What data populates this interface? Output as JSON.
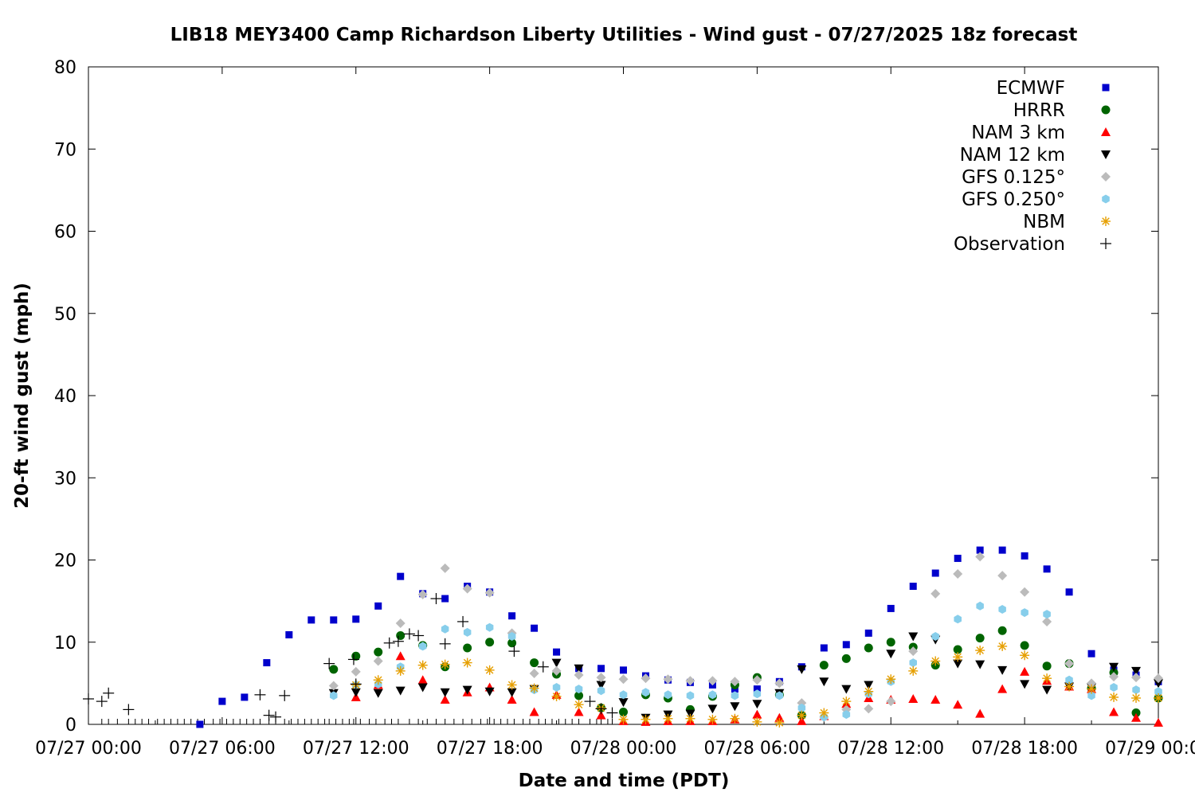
{
  "chart_data": {
    "type": "scatter",
    "title": "LIB18 MEY3400 Camp Richardson Liberty Utilities - Wind gust - 07/27/2025 18z forecast",
    "xlabel": "Date and time (PDT)",
    "ylabel": "20-ft wind gust (mph)",
    "x_unit": "hours since 07/27 00:00 PDT",
    "xlim": [
      0,
      48
    ],
    "ylim": [
      0,
      80
    ],
    "yticks": [
      0,
      10,
      20,
      30,
      40,
      50,
      60,
      70,
      80
    ],
    "xticks": [
      {
        "x": 0,
        "label": "07/27 00:00"
      },
      {
        "x": 6,
        "label": "07/27 06:00"
      },
      {
        "x": 12,
        "label": "07/27 12:00"
      },
      {
        "x": 18,
        "label": "07/27 18:00"
      },
      {
        "x": 24,
        "label": "07/28 00:00"
      },
      {
        "x": 30,
        "label": "07/28 06:00"
      },
      {
        "x": 36,
        "label": "07/28 12:00"
      },
      {
        "x": 42,
        "label": "07/28 18:00"
      },
      {
        "x": 48,
        "label": "07/29 00:00"
      }
    ],
    "legend_position": "top-right",
    "grid": false,
    "series": [
      {
        "name": "ECMWF",
        "marker": "square",
        "color": "#0000cc",
        "points": [
          [
            5,
            0
          ],
          [
            6,
            2.8
          ],
          [
            7,
            3.3
          ],
          [
            8,
            7.5
          ],
          [
            9,
            10.9
          ],
          [
            10,
            12.7
          ],
          [
            11,
            12.7
          ],
          [
            12,
            12.8
          ],
          [
            13,
            14.4
          ],
          [
            14,
            18
          ],
          [
            15,
            15.9
          ],
          [
            16,
            15.3
          ],
          [
            17,
            16.8
          ],
          [
            18,
            16.1
          ],
          [
            19,
            13.2
          ],
          [
            20,
            11.7
          ],
          [
            21,
            8.8
          ],
          [
            22,
            6.8
          ],
          [
            23,
            6.8
          ],
          [
            24,
            6.6
          ],
          [
            25,
            5.9
          ],
          [
            26,
            5.4
          ],
          [
            27,
            5.1
          ],
          [
            28,
            4.8
          ],
          [
            29,
            4.3
          ],
          [
            30,
            4.3
          ],
          [
            31,
            5.2
          ],
          [
            32,
            7
          ],
          [
            33,
            9.3
          ],
          [
            34,
            9.7
          ],
          [
            35,
            11.1
          ],
          [
            36,
            14.1
          ],
          [
            37,
            16.8
          ],
          [
            38,
            18.4
          ],
          [
            39,
            20.2
          ],
          [
            40,
            21.2
          ],
          [
            41,
            21.2
          ],
          [
            42,
            20.5
          ],
          [
            43,
            18.9
          ],
          [
            44,
            16.1
          ],
          [
            45,
            8.6
          ],
          [
            46,
            6.6
          ],
          [
            47,
            6
          ],
          [
            48,
            5.2
          ]
        ]
      },
      {
        "name": "HRRR",
        "marker": "circle",
        "color": "#006400",
        "points": [
          [
            11,
            6.7
          ],
          [
            12,
            8.3
          ],
          [
            13,
            8.8
          ],
          [
            14,
            10.8
          ],
          [
            15,
            9.6
          ],
          [
            16,
            7
          ],
          [
            17,
            9.3
          ],
          [
            18,
            10
          ],
          [
            19,
            9.9
          ],
          [
            20,
            7.5
          ],
          [
            21,
            6.1
          ],
          [
            22,
            3.5
          ],
          [
            23,
            2
          ],
          [
            24,
            1.5
          ],
          [
            25,
            3.6
          ],
          [
            26,
            3.2
          ],
          [
            27,
            1.8
          ],
          [
            28,
            3.4
          ],
          [
            29,
            4.8
          ],
          [
            30,
            5.7
          ],
          [
            31,
            3.6
          ],
          [
            32,
            1.1
          ],
          [
            33,
            7.2
          ],
          [
            34,
            8
          ],
          [
            35,
            9.3
          ],
          [
            36,
            10
          ],
          [
            37,
            9.4
          ],
          [
            38,
            7.2
          ],
          [
            39,
            9.1
          ],
          [
            40,
            10.5
          ],
          [
            41,
            11.4
          ],
          [
            42,
            9.6
          ],
          [
            43,
            7.1
          ],
          [
            44,
            7.4
          ],
          [
            45,
            4.4
          ],
          [
            46,
            6.3
          ],
          [
            47,
            1.4
          ],
          [
            48,
            3.2
          ]
        ]
      },
      {
        "name": "NAM 3 km",
        "marker": "triangle-up",
        "color": "#ff0000",
        "points": [
          [
            12,
            3.3
          ],
          [
            13,
            4.8
          ],
          [
            14,
            8.3
          ],
          [
            15,
            5.4
          ],
          [
            16,
            3
          ],
          [
            17,
            3.9
          ],
          [
            18,
            4.5
          ],
          [
            19,
            3
          ],
          [
            20,
            1.5
          ],
          [
            21,
            3.6
          ],
          [
            22,
            1.5
          ],
          [
            23,
            1.1
          ],
          [
            24,
            0.4
          ],
          [
            25,
            0.3
          ],
          [
            26,
            0.4
          ],
          [
            27,
            0.4
          ],
          [
            28,
            0.4
          ],
          [
            29,
            0.6
          ],
          [
            30,
            1.2
          ],
          [
            31,
            0.8
          ],
          [
            32,
            0.4
          ],
          [
            33,
            1
          ],
          [
            34,
            2.5
          ],
          [
            35,
            3.2
          ],
          [
            36,
            3
          ],
          [
            37,
            3.1
          ],
          [
            38,
            3
          ],
          [
            39,
            2.4
          ],
          [
            40,
            1.3
          ],
          [
            41,
            4.3
          ],
          [
            42,
            6.4
          ],
          [
            43,
            5.3
          ],
          [
            44,
            4.6
          ],
          [
            45,
            4.3
          ],
          [
            46,
            1.5
          ],
          [
            47,
            0.8
          ],
          [
            48,
            0.2
          ]
        ]
      },
      {
        "name": "NAM 12 km",
        "marker": "triangle-down",
        "color": "#000000",
        "points": [
          [
            11,
            3.8
          ],
          [
            12,
            3.9
          ],
          [
            13,
            3.8
          ],
          [
            14,
            4.1
          ],
          [
            15,
            4.5
          ],
          [
            16,
            3.9
          ],
          [
            17,
            4.2
          ],
          [
            18,
            4
          ],
          [
            19,
            3.9
          ],
          [
            20,
            4.3
          ],
          [
            21,
            7.5
          ],
          [
            22,
            6.8
          ],
          [
            23,
            4.8
          ],
          [
            24,
            2.7
          ],
          [
            25,
            0.8
          ],
          [
            26,
            1.2
          ],
          [
            27,
            1.3
          ],
          [
            28,
            1.9
          ],
          [
            29,
            2.2
          ],
          [
            30,
            2.5
          ],
          [
            31,
            3.8
          ],
          [
            32,
            6.7
          ],
          [
            33,
            5.2
          ],
          [
            34,
            4.3
          ],
          [
            35,
            4.8
          ],
          [
            36,
            8.6
          ],
          [
            37,
            10.7
          ],
          [
            38,
            10.3
          ],
          [
            39,
            7.4
          ],
          [
            40,
            7.3
          ],
          [
            41,
            6.6
          ],
          [
            42,
            4.9
          ],
          [
            43,
            4.2
          ],
          [
            44,
            4.6
          ],
          [
            45,
            4.5
          ],
          [
            46,
            7
          ],
          [
            47,
            6.5
          ],
          [
            48,
            5
          ]
        ]
      },
      {
        "name": "GFS 0.125°",
        "marker": "diamond",
        "color": "#bbbbbb",
        "points": [
          [
            11,
            4.7
          ],
          [
            12,
            6.4
          ],
          [
            13,
            7.7
          ],
          [
            14,
            12.3
          ],
          [
            15,
            15.8
          ],
          [
            16,
            19
          ],
          [
            17,
            16.5
          ],
          [
            18,
            16
          ],
          [
            19,
            11.1
          ],
          [
            20,
            6.2
          ],
          [
            21,
            6.5
          ],
          [
            22,
            6
          ],
          [
            23,
            5.7
          ],
          [
            24,
            5.5
          ],
          [
            25,
            5.6
          ],
          [
            26,
            5.5
          ],
          [
            27,
            5.3
          ],
          [
            28,
            5.3
          ],
          [
            29,
            5.2
          ],
          [
            30,
            5.4
          ],
          [
            31,
            5
          ],
          [
            32,
            2.6
          ],
          [
            33,
            0.9
          ],
          [
            34,
            1.8
          ],
          [
            35,
            1.9
          ],
          [
            36,
            2.8
          ],
          [
            37,
            8.9
          ],
          [
            38,
            15.9
          ],
          [
            39,
            18.3
          ],
          [
            40,
            20.4
          ],
          [
            41,
            18.1
          ],
          [
            42,
            16.1
          ],
          [
            43,
            12.5
          ],
          [
            44,
            7.4
          ],
          [
            45,
            5
          ],
          [
            46,
            5.8
          ],
          [
            47,
            5.7
          ],
          [
            48,
            5.6
          ]
        ]
      },
      {
        "name": "GFS 0.250°",
        "marker": "hexagon",
        "color": "#87ceeb",
        "points": [
          [
            11,
            3.5
          ],
          [
            12,
            4.8
          ],
          [
            13,
            4.9
          ],
          [
            14,
            7
          ],
          [
            15,
            9.5
          ],
          [
            16,
            11.6
          ],
          [
            17,
            11.2
          ],
          [
            18,
            11.8
          ],
          [
            19,
            10.7
          ],
          [
            20,
            4.2
          ],
          [
            21,
            4.5
          ],
          [
            22,
            4.3
          ],
          [
            23,
            4.1
          ],
          [
            24,
            3.6
          ],
          [
            25,
            3.9
          ],
          [
            26,
            3.6
          ],
          [
            27,
            3.5
          ],
          [
            28,
            3.6
          ],
          [
            29,
            3.5
          ],
          [
            30,
            3.7
          ],
          [
            31,
            3.5
          ],
          [
            32,
            2
          ],
          [
            33,
            0.9
          ],
          [
            34,
            1.2
          ],
          [
            35,
            3.7
          ],
          [
            36,
            5.2
          ],
          [
            37,
            7.5
          ],
          [
            38,
            10.7
          ],
          [
            39,
            12.8
          ],
          [
            40,
            14.4
          ],
          [
            41,
            14
          ],
          [
            42,
            13.6
          ],
          [
            43,
            13.4
          ],
          [
            44,
            5.4
          ],
          [
            45,
            3.5
          ],
          [
            46,
            4.5
          ],
          [
            47,
            4.2
          ],
          [
            48,
            4
          ]
        ]
      },
      {
        "name": "NBM",
        "marker": "asterisk",
        "color": "#e69f00",
        "points": [
          [
            12,
            4.8
          ],
          [
            13,
            5.4
          ],
          [
            14,
            6.5
          ],
          [
            15,
            7.2
          ],
          [
            16,
            7.3
          ],
          [
            17,
            7.5
          ],
          [
            18,
            6.6
          ],
          [
            19,
            4.8
          ],
          [
            20,
            4.4
          ],
          [
            21,
            3.4
          ],
          [
            22,
            2.4
          ],
          [
            23,
            2
          ],
          [
            24,
            0.6
          ],
          [
            25,
            0.6
          ],
          [
            26,
            0.7
          ],
          [
            27,
            0.7
          ],
          [
            28,
            0.6
          ],
          [
            29,
            0.7
          ],
          [
            30,
            0.3
          ],
          [
            31,
            0.2
          ],
          [
            32,
            1.1
          ],
          [
            33,
            1.4
          ],
          [
            34,
            2.8
          ],
          [
            35,
            4
          ],
          [
            36,
            5.5
          ],
          [
            37,
            6.5
          ],
          [
            38,
            7.7
          ],
          [
            39,
            8.2
          ],
          [
            40,
            9
          ],
          [
            41,
            9.5
          ],
          [
            42,
            8.4
          ],
          [
            43,
            5.6
          ],
          [
            44,
            4.6
          ],
          [
            45,
            4.3
          ],
          [
            46,
            3.3
          ],
          [
            47,
            3.2
          ],
          [
            48,
            3.2
          ]
        ]
      },
      {
        "name": "Observation",
        "marker": "plus",
        "color": "#000000",
        "points": [
          [
            0,
            3.1
          ],
          [
            0.6,
            2.8
          ],
          [
            0.9,
            3.8
          ],
          [
            1.8,
            1.8
          ],
          [
            7.7,
            3.6
          ],
          [
            8.1,
            1.1
          ],
          [
            8.4,
            0.9
          ],
          [
            8.8,
            3.5
          ],
          [
            10.8,
            7.4
          ],
          [
            11.9,
            7.9
          ],
          [
            12,
            4.9
          ],
          [
            13.5,
            9.9
          ],
          [
            13.9,
            10.1
          ],
          [
            14.4,
            11
          ],
          [
            14.8,
            10.8
          ],
          [
            15.6,
            15.3
          ],
          [
            16,
            9.8
          ],
          [
            16.8,
            12.5
          ],
          [
            19.1,
            8.9
          ],
          [
            20.4,
            7
          ],
          [
            22.5,
            2.8
          ],
          [
            23,
            1.9
          ],
          [
            23.5,
            1.4
          ]
        ]
      }
    ],
    "observation_tick_hours": [
      0,
      0.6,
      0.9,
      1.3,
      1.8,
      2.1,
      2.4,
      2.7,
      3.1,
      3.4,
      3.7,
      4.0,
      4.3,
      4.6,
      4.9,
      5.2,
      5.6,
      5.9,
      6.2,
      6.5,
      6.8,
      7.1,
      7.4,
      7.7,
      8.1,
      8.4,
      8.8,
      9.1,
      9.4,
      9.7,
      10.0,
      10.3,
      10.6,
      10.8,
      11.1,
      11.4,
      11.7,
      11.9,
      12.2,
      12.6,
      12.9,
      13.3,
      13.6,
      13.9,
      14.4,
      14.8,
      15.2,
      15.6,
      16.0,
      16.4,
      16.8,
      17.2,
      17.6,
      17.9,
      18.2,
      18.5,
      18.8,
      19.1,
      19.5,
      19.8,
      20.2,
      20.5,
      20.8,
      21.1,
      21.4,
      21.7,
      22.0,
      22.5,
      22.8,
      23.0,
      23.3,
      23.5
    ]
  }
}
